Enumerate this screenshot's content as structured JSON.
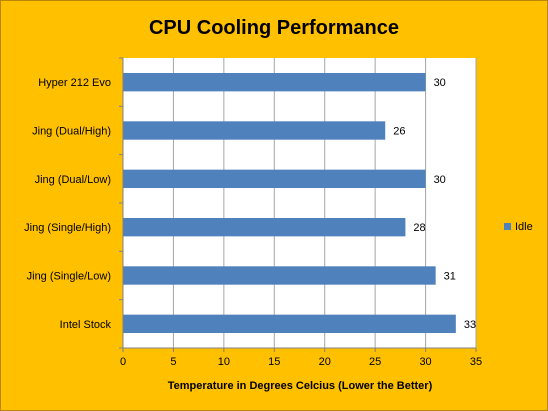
{
  "chart_data": {
    "type": "bar",
    "orientation": "horizontal",
    "title": "CPU Cooling Performance",
    "xlabel": "Temperature in Degrees Celcius (Lower the Better)",
    "ylabel": "",
    "xlim": [
      0,
      35
    ],
    "x_ticks": [
      0,
      5,
      10,
      15,
      20,
      25,
      30,
      35
    ],
    "grid": true,
    "legend_position": "right",
    "categories": [
      "Hyper 212 Evo",
      "Jing (Dual/High)",
      "Jing (Dual/Low)",
      "Jing (Single/High)",
      "Jing (Single/Low)",
      "Intel Stock"
    ],
    "series": [
      {
        "name": "Idle",
        "values": [
          30,
          26,
          30,
          28,
          31,
          33
        ]
      }
    ],
    "colors": {
      "background": "#FFC000",
      "plot_area": "#FFFFFF",
      "bar": "#4F81BD",
      "grid": "#A6A6A6"
    }
  }
}
